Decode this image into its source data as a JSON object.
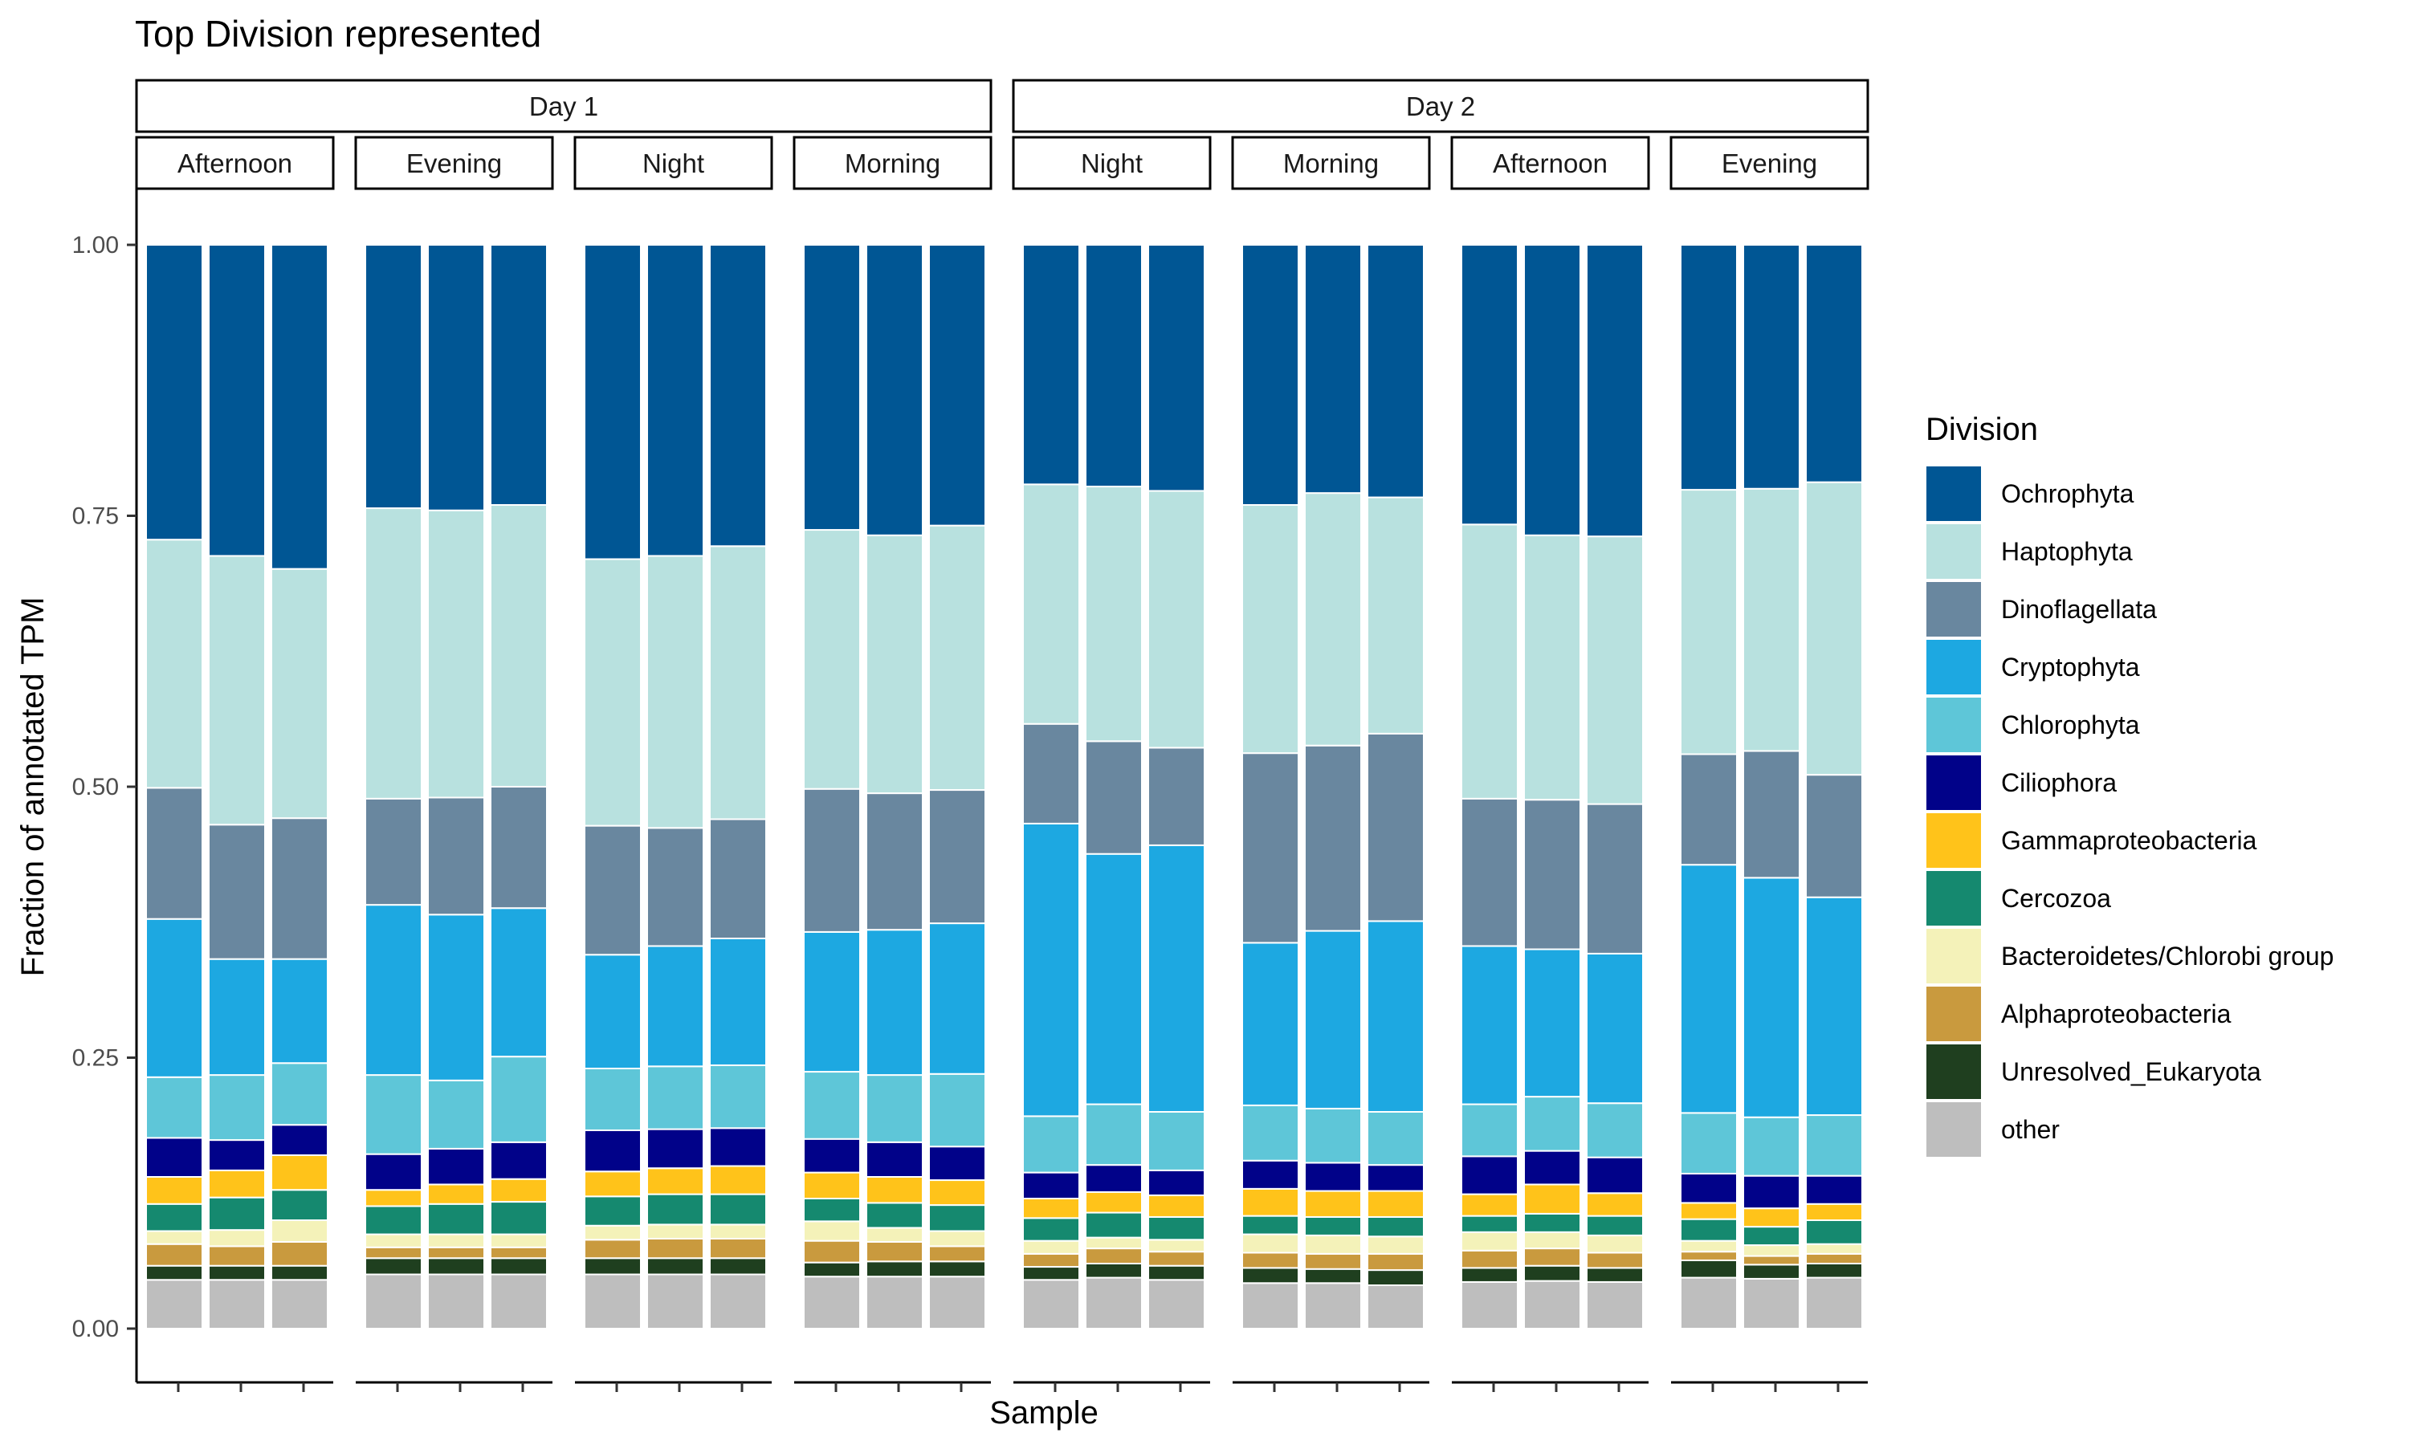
{
  "chart_data": {
    "type": "bar",
    "stacked": true,
    "title": "Top Division represented",
    "xlabel": "Sample",
    "ylabel": "Fraction of annotated TPM",
    "ylim": [
      0,
      1.05
    ],
    "yticks": [
      "0.00",
      "0.25",
      "0.50",
      "0.75",
      "1.00"
    ],
    "ytick_values": [
      0,
      0.25,
      0.5,
      0.75,
      1.0
    ],
    "grid": false,
    "legend": {
      "title": "Division",
      "position": "right"
    },
    "series": [
      {
        "name": "other",
        "color": "#BEBEBE"
      },
      {
        "name": "Unresolved_Eukaryota",
        "color": "#1F3F1F"
      },
      {
        "name": "Alphaproteobacteria",
        "color": "#C99A3E"
      },
      {
        "name": "Bacteroidetes/Chlorobi group",
        "color": "#F4F2B9"
      },
      {
        "name": "Cercozoa",
        "color": "#15896F"
      },
      {
        "name": "Gammaproteobacteria",
        "color": "#FFC31A"
      },
      {
        "name": "Ciliophora",
        "color": "#010289"
      },
      {
        "name": "Chlorophyta",
        "color": "#5EC6D8"
      },
      {
        "name": "Cryptophyta",
        "color": "#1DA8E1"
      },
      {
        "name": "Dinoflagellata",
        "color": "#69879F"
      },
      {
        "name": "Haptophyta",
        "color": "#B8E1DF"
      },
      {
        "name": "Ochrophyta",
        "color": "#005694"
      }
    ],
    "legend_order": [
      "Ochrophyta",
      "Haptophyta",
      "Dinoflagellata",
      "Cryptophyta",
      "Chlorophyta",
      "Ciliophora",
      "Gammaproteobacteria",
      "Cercozoa",
      "Bacteroidetes/Chlorobi group",
      "Alphaproteobacteria",
      "Unresolved_Eukaryota",
      "other"
    ],
    "days": [
      {
        "label": "Day 1",
        "panels": [
          0,
          1,
          2,
          3
        ]
      },
      {
        "label": "Day 2",
        "panels": [
          4,
          5,
          6,
          7
        ]
      }
    ],
    "panels": [
      {
        "label": "Afternoon",
        "bars": [
          [
            0.045,
            0.013,
            0.02,
            0.012,
            0.025,
            0.025,
            0.036,
            0.056,
            0.146,
            0.121,
            0.229,
            0.272
          ],
          [
            0.045,
            0.013,
            0.018,
            0.015,
            0.03,
            0.025,
            0.028,
            0.06,
            0.107,
            0.124,
            0.248,
            0.287
          ],
          [
            0.045,
            0.013,
            0.022,
            0.02,
            0.028,
            0.032,
            0.028,
            0.057,
            0.096,
            0.13,
            0.23,
            0.299
          ]
        ]
      },
      {
        "label": "Evening",
        "bars": [
          [
            0.05,
            0.015,
            0.01,
            0.012,
            0.026,
            0.015,
            0.033,
            0.073,
            0.157,
            0.098,
            0.268,
            0.243
          ],
          [
            0.05,
            0.015,
            0.01,
            0.012,
            0.028,
            0.018,
            0.033,
            0.063,
            0.153,
            0.108,
            0.265,
            0.245
          ],
          [
            0.05,
            0.015,
            0.01,
            0.012,
            0.03,
            0.021,
            0.034,
            0.079,
            0.137,
            0.112,
            0.26,
            0.24
          ]
        ]
      },
      {
        "label": "Night",
        "bars": [
          [
            0.05,
            0.015,
            0.017,
            0.013,
            0.027,
            0.023,
            0.038,
            0.057,
            0.105,
            0.119,
            0.246,
            0.29
          ],
          [
            0.05,
            0.015,
            0.018,
            0.013,
            0.028,
            0.024,
            0.036,
            0.058,
            0.111,
            0.109,
            0.251,
            0.287
          ],
          [
            0.05,
            0.015,
            0.018,
            0.013,
            0.028,
            0.026,
            0.035,
            0.058,
            0.117,
            0.11,
            0.252,
            0.278
          ]
        ]
      },
      {
        "label": "Morning",
        "bars": [
          [
            0.048,
            0.013,
            0.02,
            0.018,
            0.021,
            0.024,
            0.031,
            0.062,
            0.129,
            0.132,
            0.239,
            0.263
          ],
          [
            0.048,
            0.014,
            0.018,
            0.013,
            0.023,
            0.024,
            0.032,
            0.062,
            0.134,
            0.126,
            0.238,
            0.268
          ],
          [
            0.048,
            0.014,
            0.014,
            0.014,
            0.024,
            0.023,
            0.031,
            0.067,
            0.139,
            0.123,
            0.244,
            0.259
          ]
        ]
      },
      {
        "label": "Night",
        "bars": [
          [
            0.045,
            0.012,
            0.012,
            0.012,
            0.021,
            0.018,
            0.024,
            0.052,
            0.27,
            0.092,
            0.221,
            0.221
          ],
          [
            0.047,
            0.013,
            0.014,
            0.01,
            0.023,
            0.019,
            0.025,
            0.056,
            0.231,
            0.104,
            0.235,
            0.223
          ],
          [
            0.045,
            0.013,
            0.013,
            0.011,
            0.021,
            0.02,
            0.023,
            0.054,
            0.246,
            0.09,
            0.237,
            0.227
          ]
        ]
      },
      {
        "label": "Morning",
        "bars": [
          [
            0.042,
            0.014,
            0.014,
            0.017,
            0.017,
            0.025,
            0.026,
            0.051,
            0.15,
            0.175,
            0.229,
            0.24
          ],
          [
            0.042,
            0.013,
            0.014,
            0.017,
            0.017,
            0.024,
            0.026,
            0.05,
            0.164,
            0.171,
            0.233,
            0.229
          ],
          [
            0.04,
            0.014,
            0.015,
            0.016,
            0.018,
            0.024,
            0.024,
            0.049,
            0.176,
            0.173,
            0.218,
            0.233
          ]
        ]
      },
      {
        "label": "Afternoon",
        "bars": [
          [
            0.043,
            0.013,
            0.016,
            0.017,
            0.015,
            0.02,
            0.035,
            0.048,
            0.146,
            0.136,
            0.253,
            0.258
          ],
          [
            0.044,
            0.014,
            0.016,
            0.015,
            0.017,
            0.027,
            0.031,
            0.05,
            0.136,
            0.138,
            0.244,
            0.268
          ],
          [
            0.043,
            0.013,
            0.014,
            0.016,
            0.018,
            0.021,
            0.033,
            0.05,
            0.138,
            0.138,
            0.247,
            0.269
          ]
        ]
      },
      {
        "label": "Evening",
        "bars": [
          [
            0.047,
            0.016,
            0.008,
            0.01,
            0.02,
            0.015,
            0.027,
            0.056,
            0.229,
            0.102,
            0.244,
            0.226
          ],
          [
            0.046,
            0.013,
            0.008,
            0.01,
            0.017,
            0.017,
            0.03,
            0.054,
            0.221,
            0.117,
            0.242,
            0.225
          ],
          [
            0.047,
            0.013,
            0.009,
            0.009,
            0.022,
            0.015,
            0.026,
            0.056,
            0.201,
            0.113,
            0.27,
            0.219
          ]
        ]
      }
    ]
  }
}
